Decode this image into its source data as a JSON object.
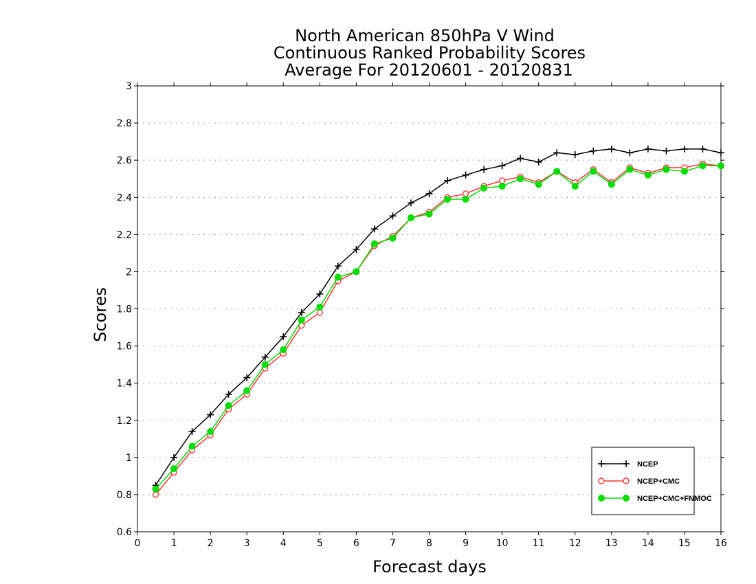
{
  "chart_data": {
    "type": "line",
    "title": [
      "North American 850hPa V Wind",
      "Continuous Ranked Probability Scores",
      "Average For 20120601 - 20120831"
    ],
    "xlabel": "Forecast days",
    "ylabel": "Scores",
    "xlim": [
      0,
      16
    ],
    "ylim": [
      0.6,
      3
    ],
    "xticks": [
      0,
      1,
      2,
      3,
      4,
      5,
      6,
      7,
      8,
      9,
      10,
      11,
      12,
      13,
      14,
      15,
      16
    ],
    "yticks": [
      0.6,
      0.8,
      1,
      1.2,
      1.4,
      1.6,
      1.8,
      2,
      2.2,
      2.4,
      2.6,
      2.8,
      3
    ],
    "ytick_labels": [
      "0.6",
      "0.8",
      "1",
      "1.2",
      "1.4",
      "1.6",
      "1.8",
      "2",
      "2.2",
      "2.4",
      "2.6",
      "2.8",
      "3"
    ],
    "grid": true,
    "legend_position": "bottom-right",
    "x": [
      0.5,
      1,
      1.5,
      2,
      2.5,
      3,
      3.5,
      4,
      4.5,
      5,
      5.5,
      6,
      6.5,
      7,
      7.5,
      8,
      8.5,
      9,
      9.5,
      10,
      10.5,
      11,
      11.5,
      12,
      12.5,
      13,
      13.5,
      14,
      14.5,
      15,
      15.5,
      16
    ],
    "series": [
      {
        "name": "NCEP",
        "color": "#000000",
        "marker": "plus",
        "values": [
          0.85,
          1.0,
          1.14,
          1.23,
          1.34,
          1.43,
          1.54,
          1.65,
          1.78,
          1.88,
          2.03,
          2.12,
          2.23,
          2.3,
          2.37,
          2.42,
          2.49,
          2.52,
          2.55,
          2.57,
          2.61,
          2.59,
          2.64,
          2.63,
          2.65,
          2.66,
          2.64,
          2.66,
          2.65,
          2.66,
          2.66,
          2.64
        ]
      },
      {
        "name": "NCEP+CMC",
        "color": "#ff3333",
        "marker": "open-circle",
        "values": [
          0.8,
          0.92,
          1.04,
          1.12,
          1.26,
          1.34,
          1.48,
          1.56,
          1.71,
          1.78,
          1.95,
          2.0,
          2.14,
          2.19,
          2.29,
          2.32,
          2.4,
          2.42,
          2.46,
          2.49,
          2.51,
          2.48,
          2.54,
          2.48,
          2.55,
          2.48,
          2.56,
          2.53,
          2.56,
          2.56,
          2.58,
          2.57
        ]
      },
      {
        "name": "NCEP+CMC+FNMOC",
        "color": "#00dd00",
        "marker": "filled-circle",
        "values": [
          0.83,
          0.94,
          1.06,
          1.14,
          1.28,
          1.36,
          1.5,
          1.58,
          1.74,
          1.81,
          1.97,
          2.0,
          2.15,
          2.18,
          2.29,
          2.31,
          2.39,
          2.39,
          2.45,
          2.46,
          2.5,
          2.47,
          2.54,
          2.46,
          2.54,
          2.47,
          2.55,
          2.52,
          2.55,
          2.54,
          2.57,
          2.57
        ]
      }
    ]
  }
}
